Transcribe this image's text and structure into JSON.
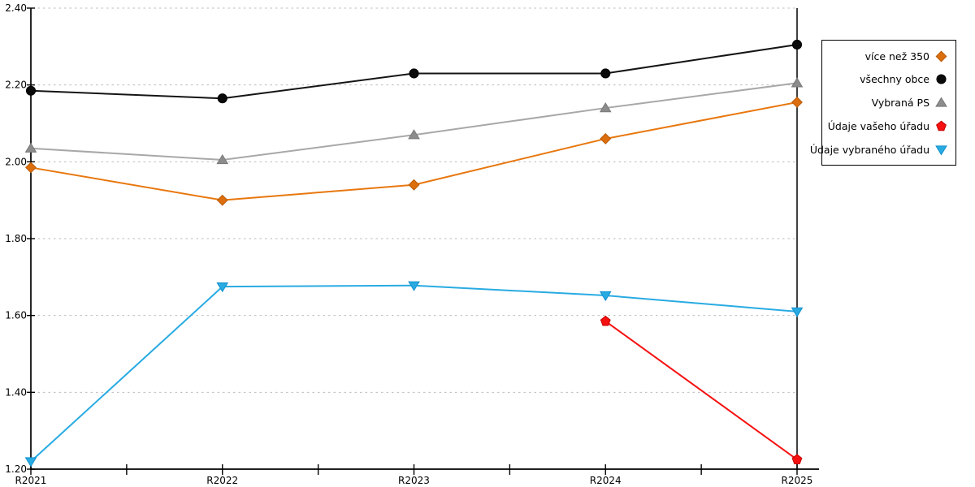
{
  "chart_data": {
    "type": "line",
    "title": "",
    "xlabel": "",
    "ylabel": "",
    "categories": [
      "R2021",
      "R2022",
      "R2023",
      "R2024",
      "R2025"
    ],
    "series": [
      {
        "name": "více než 350",
        "marker": "diamond",
        "color": "#E8770E",
        "marker_fill": "#DC6E0E",
        "marker_edge": "#B85A08",
        "values": [
          1.985,
          1.9,
          1.94,
          2.06,
          2.155
        ]
      },
      {
        "name": "všechny obce",
        "marker": "circle",
        "color": "#141414",
        "marker_fill": "#0A0A0A",
        "marker_edge": "#000000",
        "values": [
          2.185,
          2.165,
          2.23,
          2.23,
          2.305
        ]
      },
      {
        "name": "Vybraná PS",
        "marker": "triangle-up",
        "color": "#A8A8A8",
        "marker_fill": "#8C8C8C",
        "marker_edge": "#787878",
        "values": [
          2.035,
          2.005,
          2.07,
          2.14,
          2.205
        ]
      },
      {
        "name": "Údaje vašeho úřadu",
        "marker": "pentagon",
        "color": "#F51111",
        "marker_fill": "#F51111",
        "marker_edge": "#C40000",
        "values": [
          null,
          null,
          null,
          1.585,
          1.225
        ]
      },
      {
        "name": "Údaje vybraného úřadu",
        "marker": "triangle-down",
        "color": "#29ABE2",
        "marker_fill": "#29ABE2",
        "marker_edge": "#1090CE",
        "values": [
          1.22,
          1.675,
          1.678,
          1.652,
          1.61
        ]
      }
    ],
    "ylim": [
      1.2,
      2.4
    ],
    "ytick_labels": [
      "1.20",
      "1.40",
      "1.60",
      "1.80",
      "2.00",
      "2.20",
      "2.40"
    ],
    "grid": "horizontal-dotted",
    "grid_color": "#BBBBBB",
    "axis_color": "#000000",
    "legend_position": "right-box"
  }
}
